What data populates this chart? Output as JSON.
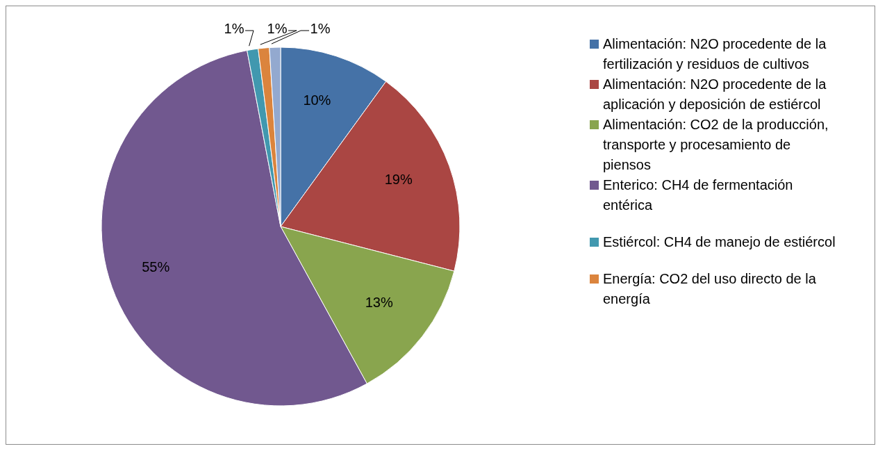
{
  "chart_data": {
    "type": "pie",
    "categories": [
      "Alimentación: N2O procedente de la fertilización y residuos de cultivos",
      "Alimentación: N2O procedente de la aplicación y deposición de estiércol",
      "Alimentación: CO2 de la producción, transporte y procesamiento de piensos",
      "Enterico: CH4 de fermentación entérica",
      "Estiércol: CH4 de manejo de estiércol",
      "Energía: CO2 del uso directo de la energía",
      null
    ],
    "values": [
      10,
      19,
      13,
      55,
      1,
      1,
      1
    ],
    "colors": [
      "#4572a7",
      "#aa4643",
      "#89a54e",
      "#71588f",
      "#4198af",
      "#db843d",
      "#93a9cf"
    ],
    "value_labels": [
      "10%",
      "19%",
      "13%",
      "55%",
      "1%",
      "1%",
      "1%"
    ],
    "legend": "right"
  }
}
